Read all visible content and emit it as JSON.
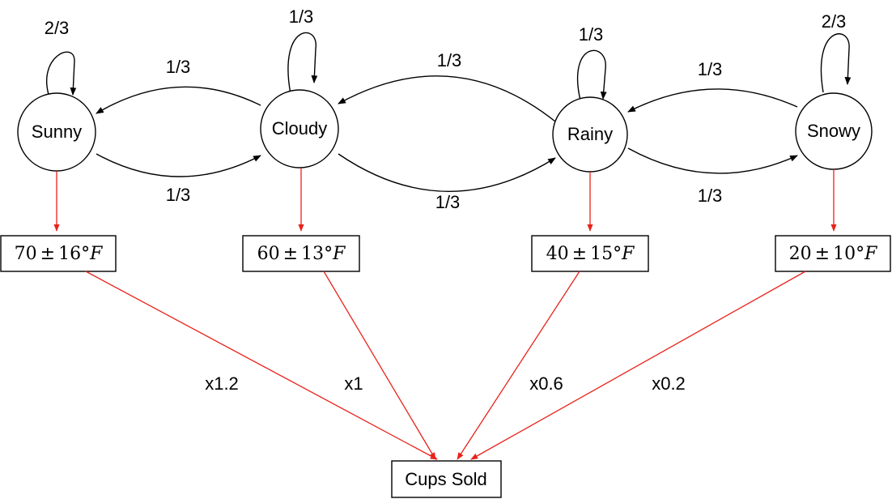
{
  "states": [
    {
      "label": "Sunny",
      "self_prob": "2/3",
      "temp": {
        "mean": "70",
        "pm": "±",
        "std": "16",
        "unit": "°",
        "scale": "F"
      },
      "multiplier": "x1.2"
    },
    {
      "label": "Cloudy",
      "self_prob": "1/3",
      "temp": {
        "mean": "60",
        "pm": "±",
        "std": "13",
        "unit": "°",
        "scale": "F"
      },
      "multiplier": "x1"
    },
    {
      "label": "Rainy",
      "self_prob": "1/3",
      "temp": {
        "mean": "40",
        "pm": "±",
        "std": "15",
        "unit": "°",
        "scale": "F"
      },
      "multiplier": "x0.6"
    },
    {
      "label": "Snowy",
      "self_prob": "2/3",
      "temp": {
        "mean": "20",
        "pm": "±",
        "std": "10",
        "unit": "°",
        "scale": "F"
      },
      "multiplier": "x0.2"
    }
  ],
  "transitions": [
    {
      "from": "Cloudy",
      "to": "Sunny",
      "prob": "1/3"
    },
    {
      "from": "Sunny",
      "to": "Cloudy",
      "prob": "1/3"
    },
    {
      "from": "Rainy",
      "to": "Cloudy",
      "prob": "1/3"
    },
    {
      "from": "Cloudy",
      "to": "Rainy",
      "prob": "1/3"
    },
    {
      "from": "Snowy",
      "to": "Rainy",
      "prob": "1/3"
    },
    {
      "from": "Rainy",
      "to": "Snowy",
      "prob": "1/3"
    }
  ],
  "sink": {
    "label": "Cups Sold"
  },
  "colors": {
    "line": "#000000",
    "emission": "#e8231b"
  }
}
